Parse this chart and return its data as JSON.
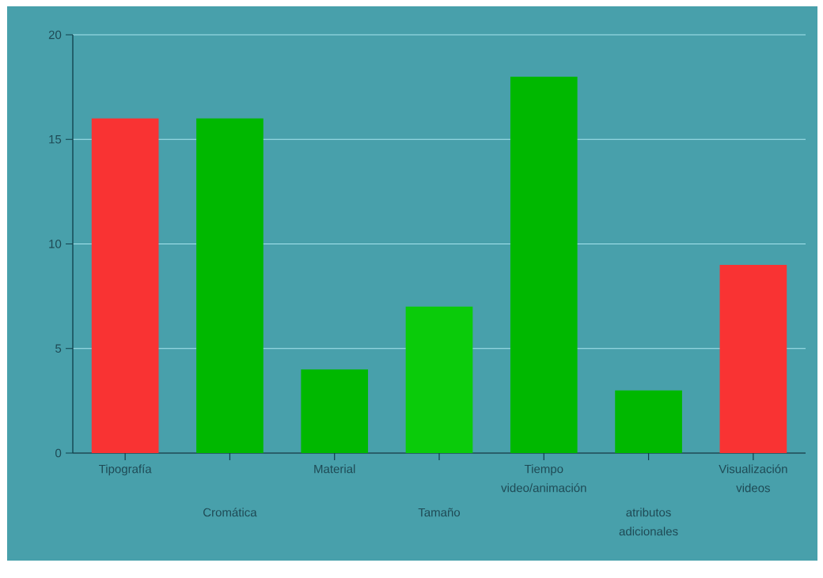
{
  "chart_data": {
    "type": "bar",
    "categories": [
      "Tipografía",
      "Cromática",
      "Material",
      "Tamaño",
      "Tiempo video/animación",
      "atributos adicionales",
      "Visualización videos"
    ],
    "values": [
      16,
      16,
      4,
      7,
      18,
      3,
      9
    ],
    "colors": [
      "#f93333",
      "#00b800",
      "#00b800",
      "#0acb0a",
      "#00b800",
      "#00b800",
      "#f93333"
    ],
    "ylim": [
      0,
      20
    ],
    "yticks": [
      0,
      5,
      10,
      15,
      20
    ],
    "grid": "y"
  }
}
